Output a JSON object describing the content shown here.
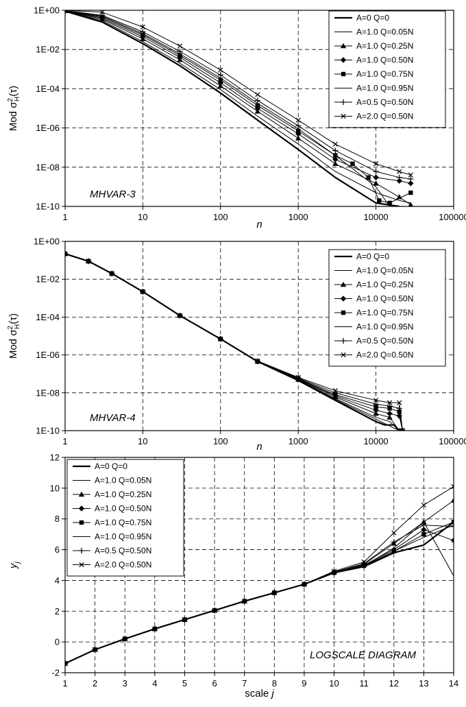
{
  "charts": [
    {
      "id": "mhvar3",
      "annotation": "MHVAR-3",
      "xlabel": "n",
      "xticks": [
        "1",
        "10",
        "100",
        "1000",
        "10000",
        "100000"
      ],
      "yticks": [
        "1E+00",
        "1E-02",
        "1E-04",
        "1E-06",
        "1E-08",
        "1E-10"
      ],
      "ylabel": "Mod σ²H(τ)"
    },
    {
      "id": "mhvar4",
      "annotation": "MHVAR-4",
      "xlabel": "n",
      "xticks": [
        "1",
        "10",
        "100",
        "1000",
        "10000",
        "100000"
      ],
      "yticks": [
        "1E+00",
        "1E-02",
        "1E-04",
        "1E-06",
        "1E-08",
        "1E-10"
      ],
      "ylabel": "Mod σ²H(τ)"
    },
    {
      "id": "logscale",
      "annotation": "LOGSCALE DIAGRAM",
      "xlabel": "scale j",
      "xticks": [
        "1",
        "2",
        "3",
        "4",
        "5",
        "6",
        "7",
        "8",
        "9",
        "10",
        "11",
        "12",
        "13",
        "14"
      ],
      "yticks": [
        "12",
        "10",
        "8",
        "6",
        "4",
        "2",
        "0",
        "-2"
      ],
      "ylabel": "yj"
    }
  ],
  "chart_data": [
    {
      "type": "line",
      "title": "",
      "annotation": "MHVAR-3",
      "xlabel": "n",
      "ylabel": "Mod σ²H(τ)",
      "xscale": "log",
      "yscale": "log",
      "xlim": [
        1,
        100000
      ],
      "ylim": [
        1e-10,
        1
      ],
      "grid": true,
      "legend_position": "top-right",
      "series": [
        {
          "name": "A=0 Q=0",
          "marker": "none",
          "width": 2.2,
          "x": [
            1,
            3,
            10,
            30,
            100,
            300,
            1000,
            3000,
            10000,
            20000
          ],
          "y": [
            0.9,
            0.25,
            0.02,
            0.0015,
            6e-05,
            2.5e-06,
            8e-08,
            3e-09,
            1.5e-10,
            7e-11
          ]
        },
        {
          "name": "A=1.0 Q=0.05N",
          "marker": "none",
          "width": 1.0,
          "x": [
            1,
            3,
            10,
            30,
            100,
            300,
            1000,
            3000,
            10000,
            20000,
            28000
          ],
          "y": [
            0.92,
            0.3,
            0.025,
            0.002,
            9e-05,
            4e-06,
            1.5e-07,
            6e-09,
            5e-10,
            2e-10,
            1.5e-10
          ]
        },
        {
          "name": "A=1.0 Q=0.25N",
          "marker": "triangle",
          "width": 1.0,
          "x": [
            1,
            3,
            10,
            30,
            100,
            300,
            1000,
            3000,
            10000,
            20000,
            28000
          ],
          "y": [
            0.93,
            0.35,
            0.035,
            0.003,
            0.00014,
            7e-06,
            3e-07,
            1.5e-08,
            1.5e-09,
            3e-10,
            1.2e-10
          ]
        },
        {
          "name": "A=1.0 Q=0.50N",
          "marker": "diamond",
          "width": 1.0,
          "x": [
            1,
            3,
            10,
            30,
            100,
            300,
            1000,
            3000,
            10000,
            20000,
            28000
          ],
          "y": [
            0.95,
            0.4,
            0.045,
            0.004,
            0.0002,
            1e-05,
            5e-07,
            2.5e-08,
            3e-09,
            2e-09,
            1.5e-09
          ]
        },
        {
          "name": "A=1.0 Q=0.75N",
          "marker": "square",
          "width": 1.0,
          "x": [
            1,
            3,
            10,
            30,
            100,
            300,
            1000,
            3000,
            5000,
            8000,
            11000,
            15000,
            28000
          ],
          "y": [
            0.96,
            0.45,
            0.055,
            0.005,
            0.00028,
            1.4e-05,
            7e-07,
            4e-08,
            1.5e-08,
            3e-09,
            2e-10,
            1.5e-10,
            5e-10
          ]
        },
        {
          "name": "A=1.0 Q=0.95N",
          "marker": "none",
          "width": 1.0,
          "x": [
            1,
            3,
            10,
            30,
            100,
            300,
            1000,
            3000,
            10000,
            15000
          ],
          "y": [
            0.97,
            0.5,
            0.065,
            0.006,
            0.00035,
            1.8e-05,
            9e-07,
            4e-08,
            1e-09,
            1e-10
          ]
        },
        {
          "name": "A=0.5 Q=0.50N",
          "marker": "plus",
          "width": 1.0,
          "x": [
            1,
            3,
            10,
            30,
            100,
            300,
            1000,
            3000,
            10000,
            20000,
            28000
          ],
          "y": [
            0.98,
            0.55,
            0.08,
            0.008,
            0.0005,
            2.5e-05,
            1.3e-06,
            7e-08,
            6e-09,
            3e-09,
            2.5e-09
          ]
        },
        {
          "name": "A=2.0 Q=0.50N",
          "marker": "cross",
          "width": 1.0,
          "x": [
            1,
            3,
            10,
            30,
            100,
            300,
            1000,
            3000,
            10000,
            20000,
            28000
          ],
          "y": [
            1.0,
            0.8,
            0.14,
            0.015,
            0.0009,
            5e-05,
            2.5e-06,
            1.5e-07,
            1.5e-08,
            6e-09,
            4e-09
          ]
        }
      ]
    },
    {
      "type": "line",
      "title": "",
      "annotation": "MHVAR-4",
      "xlabel": "n",
      "ylabel": "Mod σ²H(τ)",
      "xscale": "log",
      "yscale": "log",
      "xlim": [
        1,
        100000
      ],
      "ylim": [
        1e-10,
        1
      ],
      "grid": true,
      "legend_position": "top-right",
      "series": [
        {
          "name": "A=0 Q=0",
          "marker": "none",
          "width": 2.2,
          "x": [
            1,
            2,
            4,
            10,
            30,
            100,
            300,
            1000,
            3000,
            10000,
            13000,
            17000,
            20000
          ],
          "y": [
            0.22,
            0.09,
            0.02,
            0.0022,
            0.00012,
            7e-06,
            4.5e-07,
            4.5e-08,
            4e-09,
            3e-10,
            2e-10,
            2e-10,
            1e-10
          ]
        },
        {
          "name": "A=1.0 Q=0.05N",
          "marker": "none",
          "width": 1.0,
          "x": [
            1,
            2,
            4,
            10,
            30,
            100,
            300,
            1000,
            3000,
            10000,
            15000,
            20000
          ],
          "y": [
            0.22,
            0.09,
            0.02,
            0.0022,
            0.00012,
            7e-06,
            4.5e-07,
            4.7e-08,
            5e-09,
            5e-10,
            3e-10,
            1e-10
          ]
        },
        {
          "name": "A=1.0 Q=0.25N",
          "marker": "triangle",
          "width": 1.0,
          "x": [
            1,
            2,
            4,
            10,
            30,
            100,
            300,
            1000,
            3000,
            10000,
            15000,
            20000
          ],
          "y": [
            0.22,
            0.09,
            0.02,
            0.0022,
            0.00012,
            7e-06,
            4.5e-07,
            5e-08,
            6e-09,
            8e-10,
            5e-10,
            1e-10
          ]
        },
        {
          "name": "A=1.0 Q=0.50N",
          "marker": "diamond",
          "width": 1.0,
          "x": [
            1,
            2,
            4,
            10,
            30,
            100,
            300,
            1000,
            3000,
            10000,
            15000,
            20000,
            22000
          ],
          "y": [
            0.22,
            0.09,
            0.02,
            0.0022,
            0.00012,
            7e-06,
            4.5e-07,
            5.3e-08,
            7e-09,
            1.2e-09,
            8e-10,
            6e-10,
            1e-10
          ]
        },
        {
          "name": "A=1.0 Q=0.75N",
          "marker": "square",
          "width": 1.0,
          "x": [
            1,
            2,
            4,
            10,
            30,
            100,
            300,
            1000,
            3000,
            10000,
            15000,
            20000,
            22000
          ],
          "y": [
            0.22,
            0.09,
            0.02,
            0.0022,
            0.00012,
            7e-06,
            4.6e-07,
            5.6e-08,
            8e-09,
            1.8e-09,
            1.5e-09,
            1e-09,
            1e-10
          ]
        },
        {
          "name": "A=1.0 Q=0.95N",
          "marker": "none",
          "width": 1.0,
          "x": [
            1,
            2,
            4,
            10,
            30,
            100,
            300,
            1000,
            3000,
            10000,
            20000
          ],
          "y": [
            0.22,
            0.09,
            0.02,
            0.0022,
            0.00012,
            7e-06,
            4.5e-07,
            4.6e-08,
            4.5e-09,
            4e-10,
            1e-10
          ]
        },
        {
          "name": "A=0.5 Q=0.50N",
          "marker": "plus",
          "width": 1.0,
          "x": [
            1,
            2,
            4,
            10,
            30,
            100,
            300,
            1000,
            3000,
            10000,
            15000,
            20000,
            22000
          ],
          "y": [
            0.22,
            0.09,
            0.02,
            0.0022,
            0.00012,
            7e-06,
            4.7e-07,
            6e-08,
            1e-08,
            2.5e-09,
            2e-09,
            1.5e-09,
            1e-10
          ]
        },
        {
          "name": "A=2.0 Q=0.50N",
          "marker": "cross",
          "width": 1.0,
          "x": [
            1,
            2,
            4,
            10,
            30,
            100,
            300,
            1000,
            3000,
            10000,
            15000,
            20000,
            22000
          ],
          "y": [
            0.22,
            0.09,
            0.02,
            0.0022,
            0.00012,
            7e-06,
            4.8e-07,
            6.5e-08,
            1.3e-08,
            4e-09,
            3e-09,
            3e-09,
            1e-10
          ]
        }
      ]
    },
    {
      "type": "line",
      "title": "",
      "annotation": "LOGSCALE DIAGRAM",
      "xlabel": "scale j",
      "ylabel": "yj",
      "xlim": [
        1,
        14
      ],
      "ylim": [
        -2,
        12
      ],
      "grid": true,
      "legend_position": "top-left",
      "series": [
        {
          "name": "A=0 Q=0",
          "marker": "none",
          "width": 2.2,
          "x": [
            1,
            2,
            3,
            4,
            5,
            6,
            7,
            8,
            9,
            10,
            11,
            12,
            13,
            14
          ],
          "y": [
            -1.4,
            -0.5,
            0.2,
            0.85,
            1.45,
            2.05,
            2.65,
            3.2,
            3.75,
            4.5,
            4.9,
            5.8,
            6.3,
            7.8
          ]
        },
        {
          "name": "A=1.0 Q=0.05N",
          "marker": "none",
          "width": 1.0,
          "x": [
            1,
            2,
            3,
            4,
            5,
            6,
            7,
            8,
            9,
            10,
            11,
            12,
            13,
            14
          ],
          "y": [
            -1.4,
            -0.5,
            0.2,
            0.85,
            1.45,
            2.05,
            2.65,
            3.2,
            3.75,
            4.5,
            4.95,
            5.9,
            6.8,
            7.6
          ]
        },
        {
          "name": "A=1.0 Q=0.25N",
          "marker": "triangle",
          "width": 1.0,
          "x": [
            1,
            2,
            3,
            4,
            5,
            6,
            7,
            8,
            9,
            10,
            11,
            12,
            13,
            14
          ],
          "y": [
            -1.4,
            -0.5,
            0.2,
            0.85,
            1.45,
            2.05,
            2.65,
            3.2,
            3.75,
            4.55,
            5.05,
            6.4,
            7.8,
            9.2
          ]
        },
        {
          "name": "A=1.0 Q=0.50N",
          "marker": "diamond",
          "width": 1.0,
          "x": [
            1,
            2,
            3,
            4,
            5,
            6,
            7,
            8,
            9,
            10,
            11,
            12,
            13,
            14
          ],
          "y": [
            -1.4,
            -0.5,
            0.2,
            0.85,
            1.45,
            2.05,
            2.65,
            3.2,
            3.75,
            4.5,
            5.0,
            6.0,
            7.3,
            6.6
          ]
        },
        {
          "name": "A=1.0 Q=0.75N",
          "marker": "square",
          "width": 1.0,
          "x": [
            1,
            2,
            3,
            4,
            5,
            6,
            7,
            8,
            9,
            10,
            11,
            12,
            13,
            14
          ],
          "y": [
            -1.4,
            -0.5,
            0.2,
            0.85,
            1.45,
            2.05,
            2.65,
            3.2,
            3.75,
            4.5,
            4.95,
            5.9,
            7.0,
            7.8
          ]
        },
        {
          "name": "A=1.0 Q=0.95N",
          "marker": "none",
          "width": 1.0,
          "x": [
            1,
            2,
            3,
            4,
            5,
            6,
            7,
            8,
            9,
            10,
            11,
            12,
            13,
            14
          ],
          "y": [
            -1.4,
            -0.5,
            0.2,
            0.85,
            1.45,
            2.05,
            2.65,
            3.2,
            3.75,
            4.5,
            4.95,
            6.1,
            7.8,
            4.3
          ]
        },
        {
          "name": "A=0.5 Q=0.50N",
          "marker": "plus",
          "width": 1.0,
          "x": [
            1,
            2,
            3,
            4,
            5,
            6,
            7,
            8,
            9,
            10,
            11,
            12,
            13,
            14
          ],
          "y": [
            -1.4,
            -0.5,
            0.2,
            0.85,
            1.45,
            2.05,
            2.65,
            3.2,
            3.75,
            4.55,
            5.1,
            6.5,
            7.6,
            7.5
          ]
        },
        {
          "name": "A=2.0 Q=0.50N",
          "marker": "cross",
          "width": 1.0,
          "x": [
            1,
            2,
            3,
            4,
            5,
            6,
            7,
            8,
            9,
            10,
            11,
            12,
            13,
            14
          ],
          "y": [
            -1.4,
            -0.5,
            0.2,
            0.85,
            1.45,
            2.05,
            2.65,
            3.2,
            3.75,
            4.6,
            5.2,
            7.1,
            8.9,
            10.1
          ]
        }
      ]
    }
  ]
}
